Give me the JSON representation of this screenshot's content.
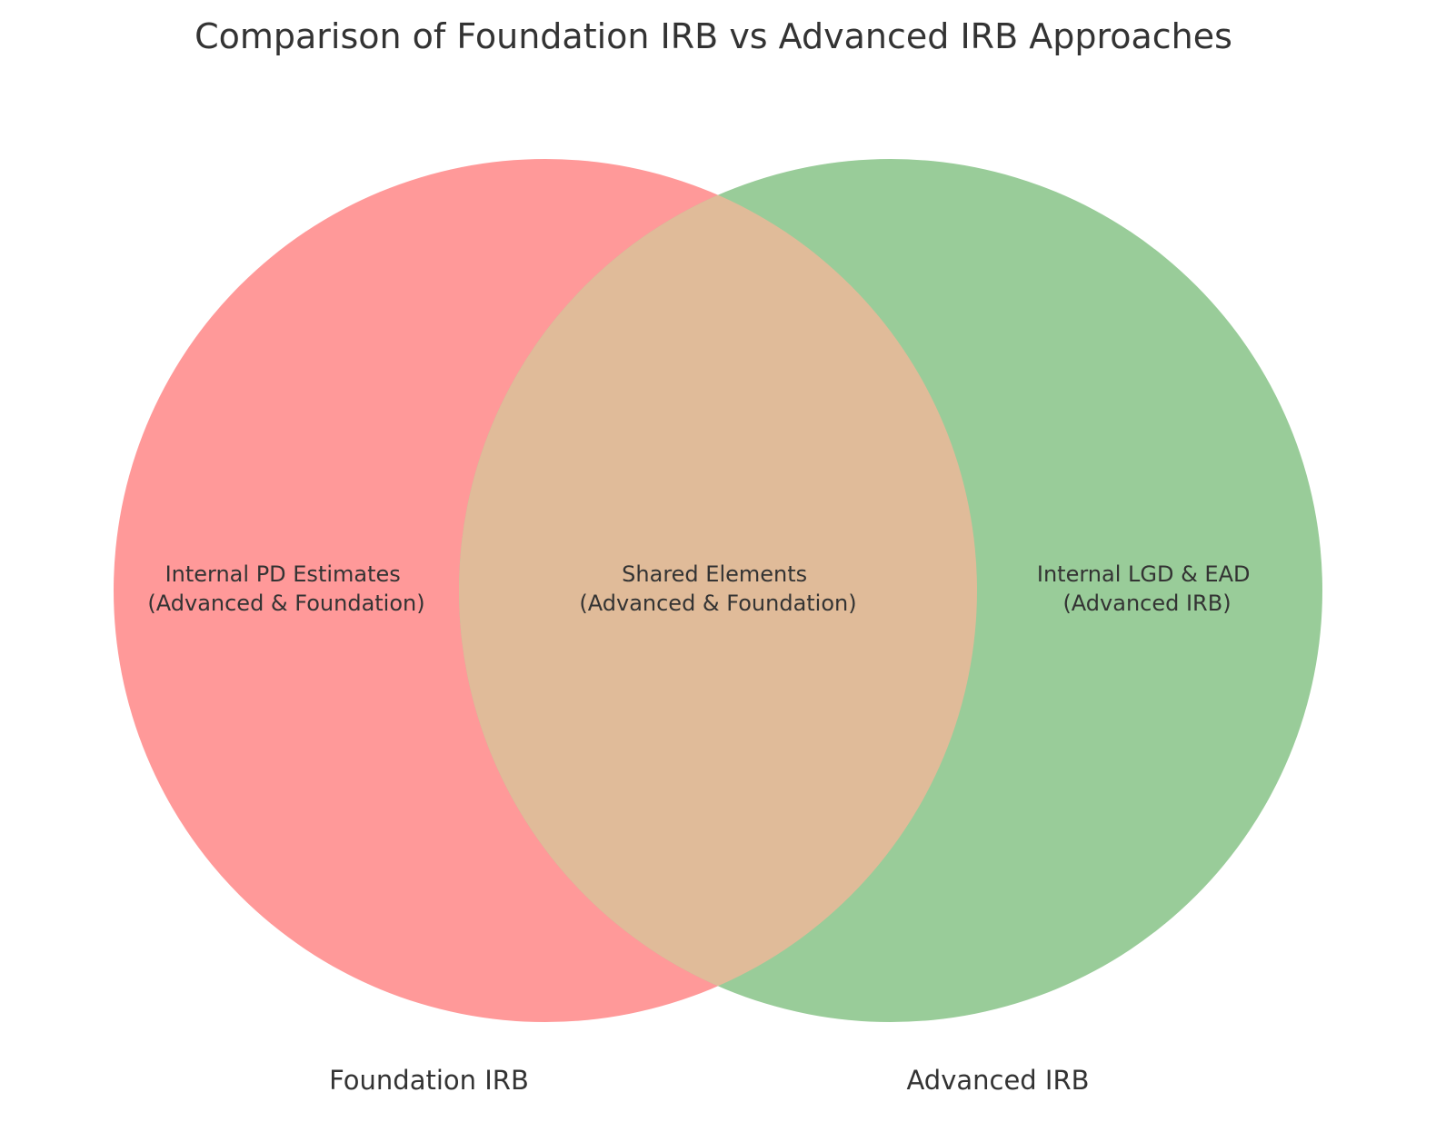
{
  "title": "Comparison of Foundation IRB vs Advanced IRB Approaches",
  "sets": {
    "left": {
      "label": "Foundation IRB",
      "color": "#ff9999"
    },
    "right": {
      "label": "Advanced IRB",
      "color": "#99cc99"
    },
    "overlap_color": "#e0bb99"
  },
  "regions": {
    "left_only": {
      "line1": "Internal PD Estimates",
      "line2": "(Advanced & Foundation)"
    },
    "intersection": {
      "line1": "Shared Elements",
      "line2": "(Advanced & Foundation)"
    },
    "right_only": {
      "line1": "Internal LGD & EAD",
      "line2": "(Advanced IRB)"
    }
  }
}
